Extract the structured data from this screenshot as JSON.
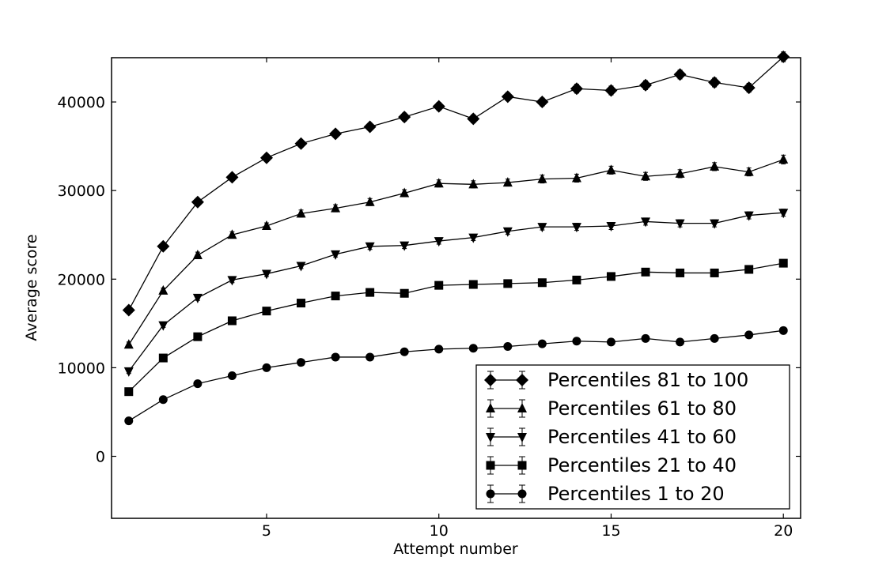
{
  "chart_data": {
    "type": "line",
    "xlabel": "Attempt number",
    "ylabel": "Average score",
    "xlim": [
      0.5,
      20.5
    ],
    "ylim": [
      -7000,
      45000
    ],
    "xticks": [
      5,
      10,
      15,
      20
    ],
    "yticks": [
      0,
      10000,
      20000,
      30000,
      40000
    ],
    "x": [
      1,
      2,
      3,
      4,
      5,
      6,
      7,
      8,
      9,
      10,
      11,
      12,
      13,
      14,
      15,
      16,
      17,
      18,
      19,
      20
    ],
    "grid": false,
    "legend_position": "lower-right",
    "series": [
      {
        "name": "Percentiles 81 to 100",
        "marker": "diamond",
        "values": [
          16500,
          23700,
          28700,
          31500,
          33700,
          35300,
          36400,
          37200,
          38300,
          39500,
          38100,
          40600,
          40000,
          41500,
          41300,
          41900,
          43100,
          42200,
          41600,
          45100
        ],
        "errors": [
          400,
          400,
          400,
          400,
          400,
          400,
          400,
          400,
          450,
          450,
          450,
          450,
          450,
          500,
          500,
          500,
          500,
          500,
          500,
          550
        ]
      },
      {
        "name": "Percentiles 61 to 80",
        "marker": "triangle-up",
        "values": [
          12600,
          18700,
          22700,
          25000,
          26000,
          27400,
          28000,
          28700,
          29700,
          30800,
          30700,
          30900,
          31300,
          31400,
          32300,
          31600,
          31900,
          32700,
          32100,
          33500
        ],
        "errors": [
          300,
          300,
          350,
          350,
          350,
          400,
          400,
          400,
          400,
          400,
          400,
          400,
          450,
          450,
          450,
          450,
          450,
          450,
          450,
          500
        ]
      },
      {
        "name": "Percentiles 41 to 60",
        "marker": "triangle-down",
        "values": [
          9600,
          14800,
          17900,
          19900,
          20600,
          21500,
          22800,
          23700,
          23800,
          24300,
          24700,
          25400,
          25900,
          25900,
          26000,
          26500,
          26300,
          26300,
          27200,
          27500
        ],
        "errors": [
          250,
          250,
          300,
          300,
          300,
          300,
          300,
          350,
          350,
          350,
          350,
          350,
          350,
          400,
          400,
          400,
          400,
          400,
          400,
          400
        ]
      },
      {
        "name": "Percentiles 21 to 40",
        "marker": "square",
        "values": [
          7300,
          11100,
          13500,
          15300,
          16400,
          17300,
          18100,
          18500,
          18400,
          19300,
          19400,
          19500,
          19600,
          19900,
          20300,
          20800,
          20700,
          20700,
          21100,
          21800
        ],
        "errors": [
          200,
          200,
          250,
          250,
          250,
          250,
          250,
          300,
          300,
          300,
          300,
          300,
          300,
          300,
          300,
          350,
          350,
          350,
          350,
          350
        ]
      },
      {
        "name": "Percentiles 1 to 20",
        "marker": "circle",
        "values": [
          4000,
          6400,
          8200,
          9100,
          10000,
          10600,
          11200,
          11200,
          11800,
          12100,
          12200,
          12400,
          12700,
          13000,
          12900,
          13300,
          12900,
          13300,
          13700,
          14200
        ],
        "errors": [
          150,
          150,
          200,
          200,
          200,
          200,
          200,
          200,
          250,
          250,
          250,
          250,
          250,
          250,
          250,
          250,
          250,
          250,
          250,
          250
        ]
      }
    ]
  }
}
